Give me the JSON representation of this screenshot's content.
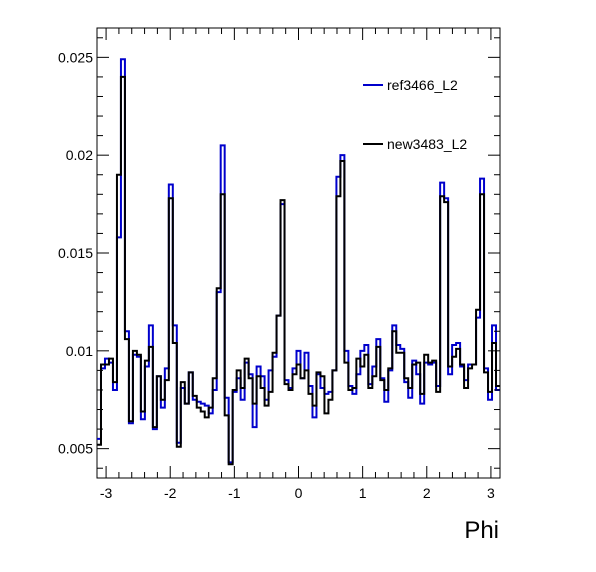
{
  "chart_data": {
    "type": "line",
    "title": "",
    "xlabel": "Phi",
    "ylabel": "",
    "xlim": [
      -3.1416,
      3.1416
    ],
    "ylim": [
      0.0035,
      0.0265
    ],
    "xticks": [
      -3,
      -2,
      -1,
      0,
      1,
      2,
      3
    ],
    "xtick_labels": [
      "-3",
      "-2",
      "-1",
      "0",
      "1",
      "2",
      "3"
    ],
    "yticks": [
      0.005,
      0.01,
      0.015,
      0.02,
      0.025
    ],
    "ytick_labels": [
      "0.005",
      "0.01",
      "0.015",
      "0.02",
      "0.025"
    ],
    "grid": false,
    "legend_position": "top-right",
    "bins": 100,
    "series": [
      {
        "name": "ref3466_L2",
        "color": "#0000cc",
        "values": [
          0.0055,
          0.0091,
          0.0096,
          0.0094,
          0.008,
          0.0158,
          0.0249,
          0.011,
          0.0063,
          0.0098,
          0.0097,
          0.0065,
          0.0092,
          0.0113,
          0.006,
          0.0087,
          0.0071,
          0.0091,
          0.0185,
          0.0113,
          0.0053,
          0.0081,
          0.0073,
          0.0089,
          0.0075,
          0.0074,
          0.0073,
          0.0072,
          0.0068,
          0.008,
          0.013,
          0.0205,
          0.0076,
          0.0043,
          0.0079,
          0.0086,
          0.0075,
          0.0094,
          0.0088,
          0.0061,
          0.0092,
          0.0087,
          0.0075,
          0.009,
          0.0097,
          0.0118,
          0.0175,
          0.0085,
          0.0081,
          0.0091,
          0.01,
          0.0086,
          0.0099,
          0.0082,
          0.0066,
          0.0088,
          0.0081,
          0.0078,
          0.0079,
          0.009,
          0.0189,
          0.02,
          0.01,
          0.0082,
          0.0078,
          0.0088,
          0.01,
          0.0103,
          0.0083,
          0.0092,
          0.0106,
          0.0086,
          0.0074,
          0.009,
          0.0113,
          0.0103,
          0.0101,
          0.0084,
          0.0076,
          0.0095,
          0.0088,
          0.0073,
          0.0094,
          0.0093,
          0.0094,
          0.0082,
          0.0186,
          0.0178,
          0.0088,
          0.0103,
          0.0104,
          0.0092,
          0.0085,
          0.0093,
          0.0093,
          0.0117,
          0.0188,
          0.0091,
          0.0075,
          0.0113,
          0.008
        ]
      },
      {
        "name": "new3483_L2",
        "color": "#000000",
        "values": [
          0.0052,
          0.0093,
          0.0093,
          0.0096,
          0.0084,
          0.019,
          0.024,
          0.0106,
          0.0064,
          0.01,
          0.0098,
          0.0069,
          0.0095,
          0.0102,
          0.0061,
          0.0087,
          0.0075,
          0.0085,
          0.0178,
          0.0104,
          0.0051,
          0.0084,
          0.0073,
          0.0089,
          0.0077,
          0.0071,
          0.0069,
          0.0066,
          0.0071,
          0.0086,
          0.0132,
          0.018,
          0.0067,
          0.0042,
          0.008,
          0.009,
          0.0081,
          0.0096,
          0.0086,
          0.0073,
          0.0087,
          0.0081,
          0.0072,
          0.0079,
          0.0099,
          0.0118,
          0.0177,
          0.0083,
          0.008,
          0.0088,
          0.0093,
          0.0086,
          0.009,
          0.0078,
          0.0072,
          0.0089,
          0.0087,
          0.0068,
          0.0075,
          0.009,
          0.0179,
          0.0197,
          0.0094,
          0.008,
          0.0081,
          0.0096,
          0.0092,
          0.0098,
          0.0081,
          0.0087,
          0.0102,
          0.0085,
          0.008,
          0.0091,
          0.011,
          0.0099,
          0.0099,
          0.0086,
          0.0081,
          0.0093,
          0.0094,
          0.0078,
          0.0098,
          0.0094,
          0.0095,
          0.0079,
          0.0179,
          0.0176,
          0.0092,
          0.0097,
          0.0101,
          0.0093,
          0.0081,
          0.0091,
          0.0093,
          0.0121,
          0.018,
          0.0089,
          0.0079,
          0.0104,
          0.0082
        ]
      }
    ]
  }
}
